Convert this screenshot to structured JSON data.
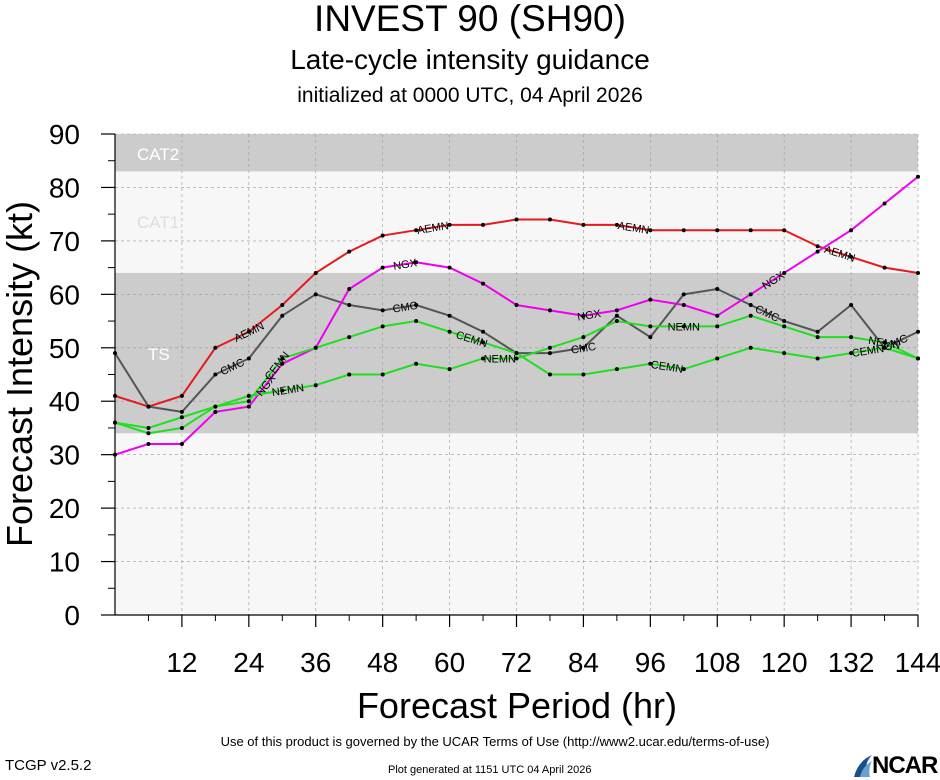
{
  "header": {
    "title": "INVEST 90 (SH90)",
    "subtitle": "Late-cycle intensity guidance",
    "initialized": "initialized at 0000 UTC, 04 April 2026"
  },
  "footer": {
    "terms": "Use of this product is governed by the UCAR Terms of Use (http://www2.ucar.edu/terms-of-use)",
    "version": "TCGP v2.5.2",
    "generated": "Plot generated at 1151 UTC   04 April 2026",
    "logo_text": "NCAR"
  },
  "chart_data": {
    "type": "line",
    "xlabel": "Forecast Period (hr)",
    "ylabel": "Forecast Intensity (kt)",
    "xlim": [
      0,
      144
    ],
    "ylim": [
      0,
      90
    ],
    "xticks": [
      12,
      24,
      36,
      48,
      60,
      72,
      84,
      96,
      108,
      120,
      132,
      144
    ],
    "yticks": [
      0,
      10,
      20,
      30,
      40,
      50,
      60,
      70,
      80,
      90
    ],
    "grid": true,
    "bands": [
      {
        "label": "TS",
        "from": 34,
        "to": 64,
        "color": "#cccccc"
      },
      {
        "label": "CAT1",
        "from": 64,
        "to": 83,
        "color": "#f7f7f7"
      },
      {
        "label": "CAT2",
        "from": 83,
        "to": 90,
        "color": "#cccccc"
      }
    ],
    "series": [
      {
        "name": "AEMN",
        "color": "#e41a1c",
        "x": [
          0,
          6,
          12,
          18,
          24,
          30,
          36,
          42,
          48,
          54,
          60,
          66,
          72,
          78,
          84,
          90,
          96,
          102,
          108,
          114,
          120,
          126,
          132,
          138,
          144
        ],
        "y": [
          41,
          39,
          41,
          50,
          53,
          58,
          64,
          68,
          71,
          72,
          73,
          73,
          74,
          74,
          73,
          73,
          72,
          72,
          72,
          72,
          72,
          69,
          67,
          65,
          64
        ]
      },
      {
        "name": "CMC",
        "color": "#555555",
        "x": [
          0,
          6,
          12,
          18,
          24,
          30,
          36,
          42,
          48,
          54,
          60,
          66,
          72,
          78,
          84,
          90,
          96,
          102,
          108,
          114,
          120,
          126,
          132,
          138,
          144
        ],
        "y": [
          49,
          39,
          38,
          45,
          48,
          56,
          60,
          58,
          57,
          58,
          56,
          53,
          49,
          49,
          50,
          56,
          52,
          60,
          61,
          58,
          55,
          53,
          58,
          50,
          53
        ]
      },
      {
        "name": "NGX",
        "color": "#ee00ee",
        "x": [
          0,
          6,
          12,
          18,
          24,
          30,
          36,
          42,
          48,
          54,
          60,
          66,
          72,
          78,
          84,
          90,
          96,
          102,
          108,
          114,
          120,
          126,
          132,
          138,
          144
        ],
        "y": [
          30,
          32,
          32,
          38,
          39,
          47,
          50,
          61,
          65,
          66,
          65,
          62,
          58,
          57,
          56,
          57,
          59,
          58,
          56,
          60,
          64,
          68,
          72,
          77,
          82
        ]
      },
      {
        "name": "NEMN",
        "color": "#22dd22",
        "x": [
          0,
          6,
          12,
          18,
          24,
          30,
          36,
          42,
          48,
          54,
          60,
          66,
          72,
          78,
          84,
          90,
          96,
          102,
          108,
          114,
          120,
          126,
          132,
          138,
          144
        ],
        "y": [
          36,
          35,
          37,
          39,
          41,
          42,
          43,
          45,
          45,
          47,
          46,
          48,
          48,
          50,
          52,
          55,
          54,
          54,
          54,
          56,
          54,
          52,
          52,
          51,
          48
        ]
      },
      {
        "name": "CEMN",
        "color": "#22dd22",
        "x": [
          0,
          6,
          12,
          18,
          24,
          30,
          36,
          42,
          48,
          54,
          60,
          66,
          72,
          78,
          84,
          90,
          96,
          102,
          108,
          114,
          120,
          126,
          132,
          138,
          144
        ],
        "y": [
          36,
          34,
          35,
          39,
          40,
          48,
          50,
          52,
          54,
          55,
          53,
          51,
          49,
          45,
          45,
          46,
          47,
          46,
          48,
          50,
          49,
          48,
          49,
          50,
          48
        ]
      }
    ],
    "series_labels": [
      {
        "series": "AEMN",
        "x": 24
      },
      {
        "series": "AEMN",
        "x": 57
      },
      {
        "series": "AEMN",
        "x": 93
      },
      {
        "series": "AEMN",
        "x": 130
      },
      {
        "series": "CMC",
        "x": 21
      },
      {
        "series": "CMC",
        "x": 52
      },
      {
        "series": "CMC",
        "x": 84
      },
      {
        "series": "CMC",
        "x": 117
      },
      {
        "series": "CMC",
        "x": 140
      },
      {
        "series": "NGX",
        "x": 27
      },
      {
        "series": "NGX",
        "x": 52
      },
      {
        "series": "NGX",
        "x": 85
      },
      {
        "series": "NGX",
        "x": 118
      },
      {
        "series": "NEMN",
        "x": 31
      },
      {
        "series": "NEMN",
        "x": 69
      },
      {
        "series": "NEMN",
        "x": 102
      },
      {
        "series": "NEMN",
        "x": 138
      },
      {
        "series": "CEMN",
        "x": 29
      },
      {
        "series": "CEMN",
        "x": 64
      },
      {
        "series": "CEMN",
        "x": 99
      },
      {
        "series": "CEMN",
        "x": 135
      }
    ]
  }
}
